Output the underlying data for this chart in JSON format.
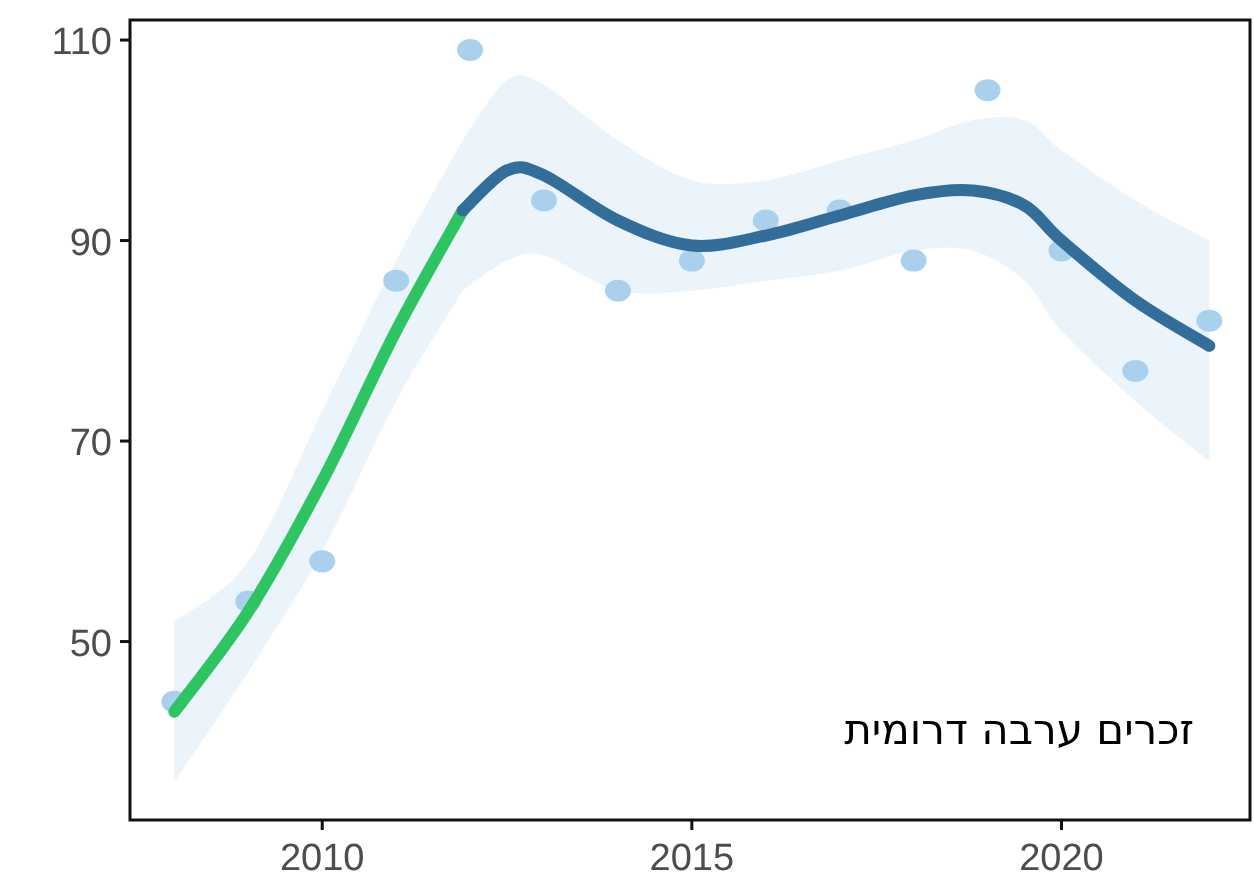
{
  "chart_data": {
    "type": "scatter",
    "xlim": [
      2007.4,
      2022.55
    ],
    "ylim": [
      32.2,
      112
    ],
    "xticks": [
      2010,
      2015,
      2020
    ],
    "yticks": [
      50,
      70,
      90,
      110
    ],
    "grid": false,
    "marker": "circle",
    "series": [
      {
        "color": "#a9d1ee",
        "x": [
          2008,
          2009,
          2010,
          2011,
          2012,
          2013,
          2014,
          2015,
          2016,
          2017,
          2018,
          2019,
          2020,
          2021,
          2022
        ],
        "values": [
          44,
          54,
          58,
          86,
          109,
          94,
          85,
          88,
          92,
          93,
          88,
          105,
          89,
          77,
          82
        ]
      },
      {
        "type": "line",
        "marker": "none",
        "color": "#2ec462",
        "line_style": "solid",
        "x": [
          2008,
          2009,
          2010,
          2011,
          2011.9
        ],
        "values": [
          43,
          53,
          66,
          81,
          93
        ],
        "lower": [
          36,
          47,
          59,
          74,
          85
        ],
        "upper": [
          52,
          58,
          73,
          88,
          100
        ]
      },
      {
        "type": "line",
        "marker": "none",
        "color": "#336e9a",
        "line_style": "solid",
        "x": [
          2011.9,
          2012.5,
          2013,
          2014,
          2015,
          2016,
          2017,
          2018,
          2018.8,
          2019.5,
          2020,
          2021,
          2022
        ],
        "values": [
          93,
          97,
          96.5,
          92,
          89.5,
          90.5,
          92.5,
          94.5,
          95,
          93.5,
          90,
          84,
          79.5
        ],
        "lower": [
          85,
          88,
          88.5,
          85,
          85,
          86,
          87,
          89,
          89,
          86,
          81,
          74,
          68
        ],
        "upper": [
          100,
          106,
          105.5,
          100,
          96,
          96,
          98,
          100,
          102,
          102,
          99,
          94,
          90
        ]
      }
    ],
    "annotations": [
      "זכרים ערבה דרומית"
    ]
  }
}
